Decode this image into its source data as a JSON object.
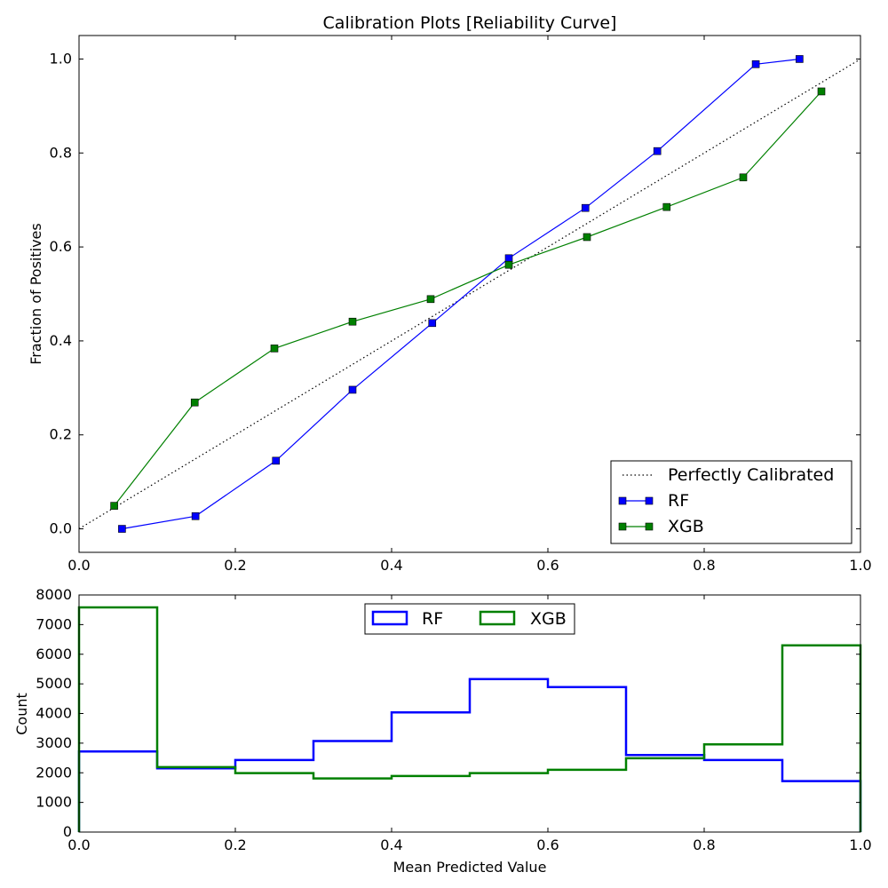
{
  "chart_data": [
    {
      "type": "line",
      "title": "Calibration Plots [Reliability Curve]",
      "xlabel": "",
      "ylabel": "Fraction of Positives",
      "xlim": [
        0.0,
        1.0
      ],
      "ylim": [
        -0.05,
        1.05
      ],
      "xticks": [
        0.0,
        0.2,
        0.4,
        0.6,
        0.8,
        1.0
      ],
      "yticks": [
        0.0,
        0.2,
        0.4,
        0.6,
        0.8,
        1.0
      ],
      "xtick_labels": [
        "0.0",
        "0.2",
        "0.4",
        "0.6",
        "0.8",
        "1.0"
      ],
      "ytick_labels": [
        "0.0",
        "0.2",
        "0.4",
        "0.6",
        "0.8",
        "1.0"
      ],
      "legend_position": "bottom-right",
      "series": [
        {
          "name": "Perfectly Calibrated",
          "color": "#000000",
          "style": "dotted",
          "marker": "none",
          "x": [
            0.0,
            1.0
          ],
          "y": [
            0.0,
            1.0
          ]
        },
        {
          "name": "RF",
          "color": "#0000ff",
          "style": "solid",
          "marker": "square",
          "x": [
            0.055,
            0.149,
            0.252,
            0.35,
            0.452,
            0.55,
            0.648,
            0.74,
            0.866,
            0.922
          ],
          "y": [
            0.0,
            0.027,
            0.145,
            0.296,
            0.438,
            0.576,
            0.683,
            0.804,
            0.989,
            1.0
          ]
        },
        {
          "name": "XGB",
          "color": "#008000",
          "style": "solid",
          "marker": "square",
          "x": [
            0.045,
            0.148,
            0.25,
            0.35,
            0.45,
            0.55,
            0.65,
            0.752,
            0.85,
            0.95
          ],
          "y": [
            0.049,
            0.269,
            0.384,
            0.441,
            0.489,
            0.562,
            0.621,
            0.685,
            0.748,
            0.931
          ]
        }
      ]
    },
    {
      "type": "histogram",
      "title": "",
      "xlabel": "Mean Predicted Value",
      "ylabel": "Count",
      "xlim": [
        0.0,
        1.0
      ],
      "ylim": [
        0,
        8000
      ],
      "xticks": [
        0.0,
        0.2,
        0.4,
        0.6,
        0.8,
        1.0
      ],
      "yticks": [
        0,
        1000,
        2000,
        3000,
        4000,
        5000,
        6000,
        7000,
        8000
      ],
      "xtick_labels": [
        "0.0",
        "0.2",
        "0.4",
        "0.6",
        "0.8",
        "1.0"
      ],
      "ytick_labels": [
        "0",
        "1000",
        "2000",
        "3000",
        "4000",
        "5000",
        "6000",
        "7000",
        "8000"
      ],
      "bin_edges": [
        0.0,
        0.1,
        0.2,
        0.3,
        0.4,
        0.5,
        0.6,
        0.7,
        0.8,
        0.9,
        1.0
      ],
      "legend_position": "top-center",
      "series": [
        {
          "name": "RF",
          "color": "#0000ff",
          "counts": [
            2720,
            2150,
            2430,
            3070,
            4040,
            5160,
            4890,
            2600,
            2430,
            1720
          ]
        },
        {
          "name": "XGB",
          "color": "#008000",
          "counts": [
            7580,
            2190,
            1990,
            1810,
            1890,
            1990,
            2100,
            2490,
            2960,
            6300
          ]
        }
      ]
    }
  ]
}
